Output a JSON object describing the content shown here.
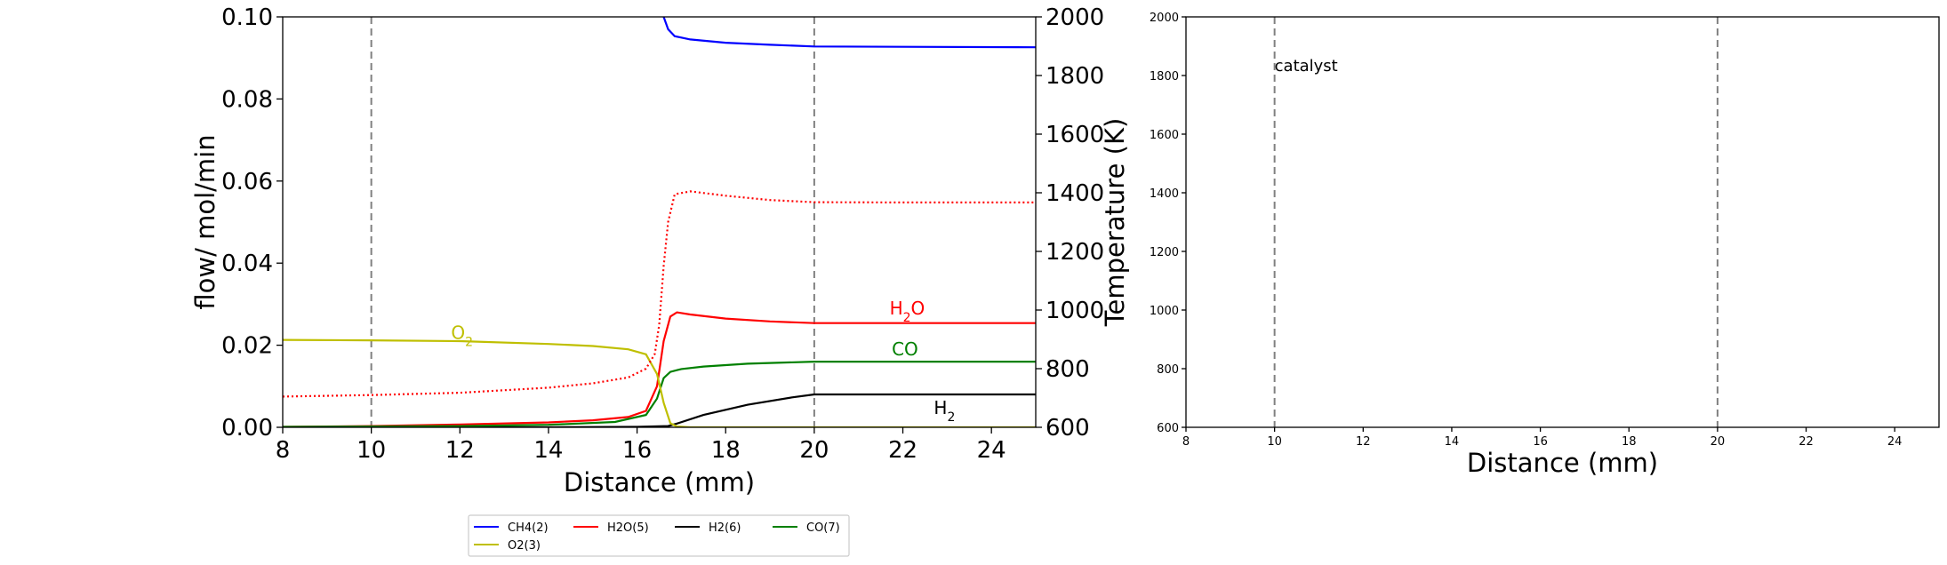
{
  "chart_data": [
    {
      "type": "line",
      "xlabel": "Distance (mm)",
      "ylabel": "flow/ mol/min",
      "y2label": "Temperature (K)",
      "xlim": [
        8,
        25
      ],
      "ylim": [
        0,
        0.1
      ],
      "y2lim": [
        600,
        2000
      ],
      "xticks": [
        "8",
        "10",
        "12",
        "14",
        "16",
        "18",
        "20",
        "22",
        "24"
      ],
      "yticks": [
        "0.00",
        "0.02",
        "0.04",
        "0.06",
        "0.08",
        "0.10"
      ],
      "y2ticks": [
        "600",
        "800",
        "1000",
        "1200",
        "1400",
        "1600",
        "1800",
        "2000"
      ],
      "vlines": [
        10,
        20
      ],
      "series": [
        {
          "name": "CH4(2)",
          "color": "#0000ff",
          "x": [
            16.6,
            16.7,
            16.85,
            17.2,
            18,
            19,
            20,
            22,
            25
          ],
          "y": [
            0.1,
            0.097,
            0.0953,
            0.0945,
            0.0937,
            0.0932,
            0.0928,
            0.0927,
            0.0926
          ]
        },
        {
          "name": "H2O(5)",
          "color": "#ff0000",
          "x": [
            8,
            10,
            12,
            14,
            15,
            15.8,
            16.2,
            16.45,
            16.6,
            16.75,
            16.9,
            17.2,
            18,
            19,
            20,
            22,
            25
          ],
          "y": [
            0.0001,
            0.0003,
            0.0007,
            0.0012,
            0.0017,
            0.0025,
            0.004,
            0.01,
            0.021,
            0.027,
            0.028,
            0.0275,
            0.0265,
            0.0258,
            0.0254,
            0.0254,
            0.0254
          ]
        },
        {
          "name": "H2(6)",
          "color": "#000000",
          "x": [
            8,
            14,
            16,
            16.7,
            16.9,
            17.5,
            18.5,
            19.5,
            20,
            22,
            25
          ],
          "y": [
            0,
            0,
            0.0001,
            0.0003,
            0.0009,
            0.003,
            0.0055,
            0.0073,
            0.008,
            0.008,
            0.008
          ]
        },
        {
          "name": "CO(7)",
          "color": "#008000",
          "x": [
            8,
            12,
            14,
            15.5,
            16.2,
            16.45,
            16.6,
            16.75,
            17,
            17.5,
            18.5,
            20,
            22,
            25
          ],
          "y": [
            0.0001,
            0.0003,
            0.0006,
            0.0013,
            0.003,
            0.007,
            0.012,
            0.0135,
            0.0142,
            0.0148,
            0.0155,
            0.016,
            0.016,
            0.016
          ]
        },
        {
          "name": "O2(3)",
          "color": "#bfbf00",
          "x": [
            8,
            10,
            12,
            14,
            15,
            15.8,
            16.2,
            16.45,
            16.6,
            16.75,
            16.9,
            17.2,
            18,
            20,
            25
          ],
          "y": [
            0.0213,
            0.0212,
            0.021,
            0.0203,
            0.0198,
            0.019,
            0.0178,
            0.013,
            0.006,
            0.001,
            0.0002,
            0,
            0,
            0,
            0
          ]
        }
      ],
      "temperature": {
        "name": "Temperature",
        "color": "#ff0000",
        "style": "dotted",
        "x": [
          8,
          10,
          12,
          14,
          15,
          15.8,
          16.2,
          16.4,
          16.5,
          16.6,
          16.7,
          16.85,
          17.2,
          18,
          19,
          20,
          22,
          25
        ],
        "y": [
          705,
          710,
          718,
          735,
          750,
          770,
          800,
          850,
          950,
          1150,
          1300,
          1395,
          1405,
          1390,
          1375,
          1368,
          1367,
          1367
        ]
      },
      "annotations": [
        {
          "text": "H",
          "sub": "2",
          "rest": "O",
          "color": "#ff0000",
          "x": 21.7,
          "y": 0.0275
        },
        {
          "text": "CO",
          "sub": "",
          "rest": "",
          "color": "#008000",
          "x": 21.75,
          "y": 0.0175
        },
        {
          "text": "H",
          "sub": "2",
          "rest": "",
          "color": "#000000",
          "x": 22.7,
          "y": 0.0033
        },
        {
          "text": "O",
          "sub": "2",
          "rest": "",
          "color": "#bfbf00",
          "x": 11.8,
          "y": 0.0215
        }
      ]
    },
    {
      "type": "line",
      "xlabel": "Distance (mm)",
      "xlim": [
        8,
        25
      ],
      "ylim": [
        600,
        2000
      ],
      "xticks": [
        "8",
        "10",
        "12",
        "14",
        "16",
        "18",
        "20",
        "22",
        "24"
      ],
      "yticks": [
        "600",
        "800",
        "1000",
        "1200",
        "1400",
        "1600",
        "1800",
        "2000"
      ],
      "vlines": [
        10,
        20
      ],
      "annotations": [
        {
          "text": "catalyst",
          "x": 10,
          "y": 1830
        }
      ]
    }
  ],
  "legend": {
    "items": [
      {
        "label": "CH4(2)",
        "color": "#0000ff"
      },
      {
        "label": "H2O(5)",
        "color": "#ff0000"
      },
      {
        "label": "H2(6)",
        "color": "#000000"
      },
      {
        "label": "CO(7)",
        "color": "#008000"
      },
      {
        "label": "O2(3)",
        "color": "#bfbf00"
      }
    ]
  }
}
